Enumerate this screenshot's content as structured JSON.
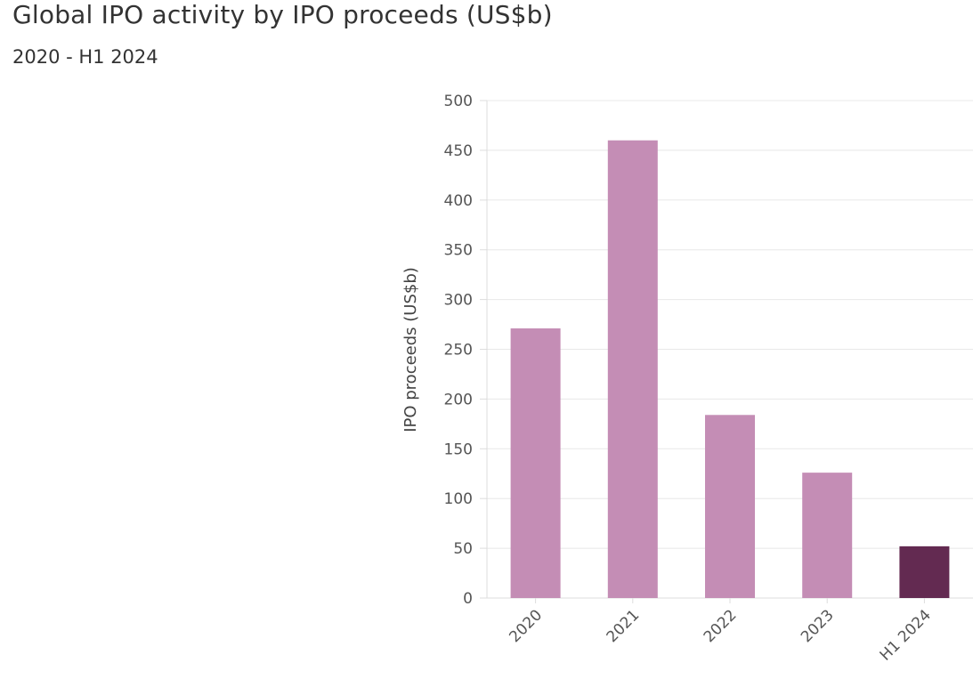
{
  "header": {
    "title": "Global IPO activity by IPO proceeds (US$b)",
    "subtitle": "2020 - H1 2024"
  },
  "colors": {
    "bar": "#c48db5",
    "highlight": "#632a51",
    "grid": "#e8e8e8",
    "axis": "#dddddd"
  },
  "chart_data": {
    "type": "bar",
    "title": "Global IPO activity by IPO proceeds (US$b)",
    "subtitle": "2020 - H1 2024",
    "xlabel": "",
    "ylabel": "IPO proceeds (US$b)",
    "categories": [
      "2020",
      "2021",
      "2022",
      "2023",
      "H1 2024"
    ],
    "values": [
      271,
      460,
      184,
      126,
      52
    ],
    "highlight_index": 4,
    "ylim": [
      0,
      500
    ],
    "yticks": [
      0,
      50,
      100,
      150,
      200,
      250,
      300,
      350,
      400,
      450,
      500
    ],
    "grid": true,
    "legend": "none"
  }
}
